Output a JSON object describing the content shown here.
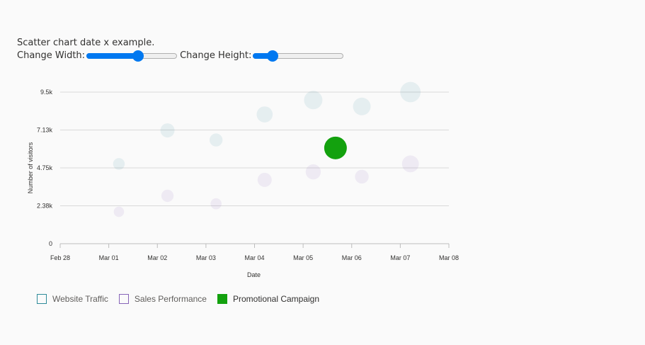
{
  "intro_text": "Scatter chart date x example.",
  "controls": {
    "width_label": "Change Width:",
    "width_value": 0.57,
    "height_label": "Change Height:",
    "height_value": 0.22
  },
  "chart_data": {
    "type": "scatter",
    "xlabel": "Date",
    "ylabel": "Number of visitors",
    "x_ticks": [
      "Feb 28",
      "Mar 01",
      "Mar 02",
      "Mar 03",
      "Mar 04",
      "Mar 05",
      "Mar 06",
      "Mar 07",
      "Mar 08"
    ],
    "y_ticks": [
      "0",
      "2.38k",
      "4.75k",
      "7.13k",
      "9.5k"
    ],
    "xlim": [
      "2023-02-28",
      "2023-03-08"
    ],
    "ylim": [
      0,
      9500
    ],
    "grid": true,
    "legend_position": "bottom-left",
    "series": [
      {
        "name": "Website Traffic",
        "color": "#2e8b99",
        "bubble_opacity": 0.1,
        "points": [
          {
            "x": "2023-03-01T05:00",
            "y": 5000,
            "size": 1
          },
          {
            "x": "2023-03-02T05:00",
            "y": 7100,
            "size": 2
          },
          {
            "x": "2023-03-03T05:00",
            "y": 6500,
            "size": 1.5
          },
          {
            "x": "2023-03-04T05:00",
            "y": 8100,
            "size": 3
          },
          {
            "x": "2023-03-05T05:00",
            "y": 9000,
            "size": 4.5
          },
          {
            "x": "2023-03-06T05:00",
            "y": 8600,
            "size": 4
          },
          {
            "x": "2023-03-07T05:00",
            "y": 9500,
            "size": 6
          }
        ]
      },
      {
        "name": "Sales Performance",
        "color": "#8764b8",
        "bubble_opacity": 0.1,
        "points": [
          {
            "x": "2023-03-01T05:00",
            "y": 2000,
            "size": 0.6
          },
          {
            "x": "2023-03-02T05:00",
            "y": 3000,
            "size": 1.2
          },
          {
            "x": "2023-03-03T05:00",
            "y": 2500,
            "size": 0.8
          },
          {
            "x": "2023-03-04T05:00",
            "y": 4000,
            "size": 2
          },
          {
            "x": "2023-03-05T05:00",
            "y": 4500,
            "size": 2.5
          },
          {
            "x": "2023-03-06T05:00",
            "y": 4200,
            "size": 1.8
          },
          {
            "x": "2023-03-07T05:00",
            "y": 5000,
            "size": 3.5
          }
        ]
      },
      {
        "name": "Promotional Campaign",
        "color": "#13a10e",
        "bubble_opacity": 1,
        "points": [
          {
            "x": "2023-03-05T16:00",
            "y": 6000,
            "size": 8
          }
        ]
      }
    ]
  }
}
